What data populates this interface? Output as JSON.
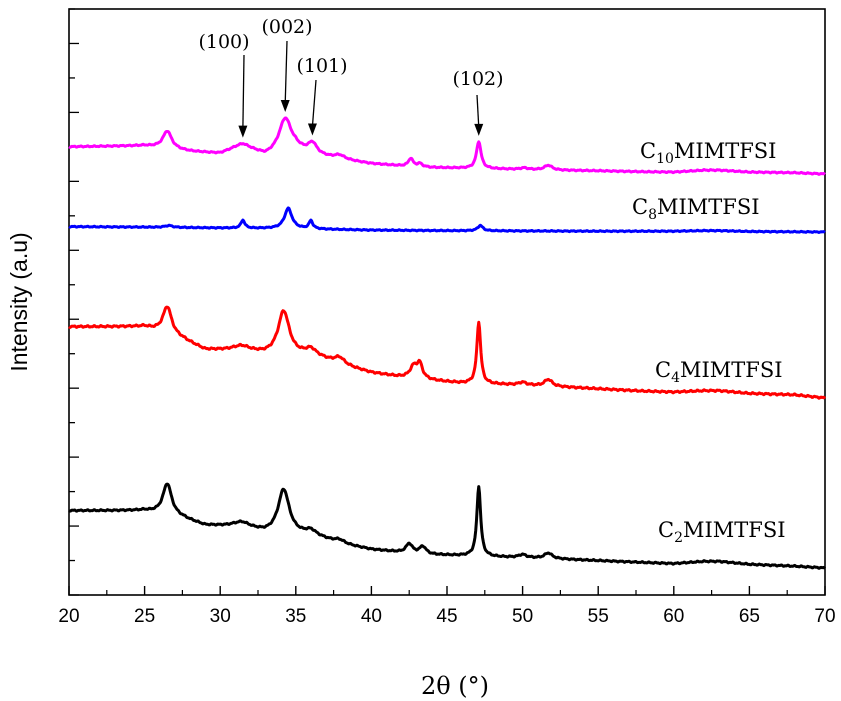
{
  "chart_data": {
    "type": "line",
    "title": "",
    "xlabel": "2θ (°)",
    "ylabel": "Intensity (a.u)",
    "xlim": [
      20,
      70
    ],
    "xticks": [
      "20",
      "25",
      "30",
      "35",
      "40",
      "45",
      "50",
      "55",
      "60",
      "65",
      "70"
    ],
    "y_tick_labels_shown": false,
    "grid": false,
    "legend": "none (series labelled inline)",
    "colors": {
      "C10": "#ff00ff",
      "C8": "#0000ff",
      "C4": "#ff0000",
      "C2": "#000000"
    },
    "series": [
      {
        "id": "C10",
        "label": {
          "pre": "C",
          "sub": "10",
          "post": "MIMTFSI"
        },
        "color": "#ff00ff",
        "baseline": [
          [
            20,
            0.85
          ],
          [
            25,
            0.88
          ],
          [
            28,
            0.7
          ],
          [
            30,
            0.62
          ],
          [
            31.5,
            0.8
          ],
          [
            33,
            0.55
          ],
          [
            35,
            0.75
          ],
          [
            36,
            0.6
          ],
          [
            38,
            0.45
          ],
          [
            40,
            0.32
          ],
          [
            42,
            0.25
          ],
          [
            44,
            0.2
          ],
          [
            46,
            0.18
          ],
          [
            48,
            0.16
          ],
          [
            50,
            0.14
          ],
          [
            52,
            0.12
          ],
          [
            55,
            0.1
          ],
          [
            58,
            0.07
          ],
          [
            60,
            0.06
          ],
          [
            62,
            0.12
          ],
          [
            63,
            0.12
          ],
          [
            65,
            0.06
          ],
          [
            68,
            0.04
          ],
          [
            70,
            0
          ]
        ],
        "peaks": [
          [
            26.5,
            0.55,
            0.35
          ],
          [
            31.4,
            0.12,
            0.9
          ],
          [
            34.3,
            1.05,
            0.5
          ],
          [
            36.1,
            0.35,
            0.35
          ],
          [
            37.9,
            0.12,
            0.4
          ],
          [
            42.6,
            0.25,
            0.18
          ],
          [
            43.2,
            0.1,
            0.2
          ],
          [
            47.1,
            0.85,
            0.18
          ],
          [
            50.1,
            0.05,
            0.3
          ],
          [
            51.7,
            0.15,
            0.3
          ]
        ]
      },
      {
        "id": "C8",
        "label": {
          "pre": "C",
          "sub": "8",
          "post": "MIMTFSI"
        },
        "color": "#0000ff",
        "baseline": [
          [
            20,
            0.2
          ],
          [
            25,
            0.18
          ],
          [
            30,
            0.15
          ],
          [
            35,
            0.12
          ],
          [
            40,
            0.07
          ],
          [
            45,
            0.05
          ],
          [
            50,
            0.04
          ],
          [
            55,
            0.03
          ],
          [
            60,
            0.03
          ],
          [
            62,
            0.05
          ],
          [
            63,
            0.05
          ],
          [
            65,
            0.02
          ],
          [
            70,
            0
          ]
        ],
        "peaks": [
          [
            26.6,
            0.07,
            0.3
          ],
          [
            31.5,
            0.3,
            0.15
          ],
          [
            34.5,
            0.75,
            0.3
          ],
          [
            36.0,
            0.3,
            0.15
          ],
          [
            47.2,
            0.2,
            0.2
          ]
        ]
      },
      {
        "id": "C4",
        "label": {
          "pre": "C",
          "sub": "4",
          "post": "MIMTFSI"
        },
        "color": "#ff0000",
        "baseline": [
          [
            20,
            1.55
          ],
          [
            25,
            1.55
          ],
          [
            27.5,
            1.28
          ],
          [
            29,
            1.05
          ],
          [
            31.5,
            1.02
          ],
          [
            33,
            0.95
          ],
          [
            35,
            0.93
          ],
          [
            36,
            0.95
          ],
          [
            38,
            0.72
          ],
          [
            40,
            0.55
          ],
          [
            42,
            0.45
          ],
          [
            44,
            0.38
          ],
          [
            46,
            0.32
          ],
          [
            48,
            0.3
          ],
          [
            50,
            0.28
          ],
          [
            52,
            0.25
          ],
          [
            55,
            0.2
          ],
          [
            58,
            0.15
          ],
          [
            60,
            0.13
          ],
          [
            62,
            0.16
          ],
          [
            63,
            0.16
          ],
          [
            65,
            0.1
          ],
          [
            68,
            0.07
          ],
          [
            70,
            0
          ]
        ],
        "peaks": [
          [
            26.5,
            0.6,
            0.35
          ],
          [
            31.4,
            0.1,
            0.7
          ],
          [
            34.2,
            0.95,
            0.45
          ],
          [
            36.0,
            0.1,
            0.4
          ],
          [
            37.9,
            0.15,
            0.4
          ],
          [
            42.8,
            0.25,
            0.3
          ],
          [
            43.2,
            0.3,
            0.22
          ],
          [
            47.1,
            1.35,
            0.15
          ],
          [
            50.0,
            0.06,
            0.3
          ],
          [
            51.7,
            0.15,
            0.3
          ]
        ]
      },
      {
        "id": "C2",
        "label": {
          "pre": "C",
          "sub": "2",
          "post": "MIMTFSI"
        },
        "color": "#000000",
        "baseline": [
          [
            20,
            1.55
          ],
          [
            25,
            1.55
          ],
          [
            27.5,
            1.35
          ],
          [
            29,
            1.15
          ],
          [
            31.5,
            1.1
          ],
          [
            33,
            0.95
          ],
          [
            35,
            0.9
          ],
          [
            36,
            0.9
          ],
          [
            38,
            0.65
          ],
          [
            40,
            0.5
          ],
          [
            42,
            0.42
          ],
          [
            44,
            0.36
          ],
          [
            46,
            0.33
          ],
          [
            48,
            0.3
          ],
          [
            50,
            0.28
          ],
          [
            52,
            0.25
          ],
          [
            55,
            0.2
          ],
          [
            58,
            0.15
          ],
          [
            60,
            0.12
          ],
          [
            62,
            0.18
          ],
          [
            63,
            0.18
          ],
          [
            65,
            0.1
          ],
          [
            68,
            0.05
          ],
          [
            70,
            0
          ]
        ],
        "peaks": [
          [
            26.5,
            0.85,
            0.35
          ],
          [
            31.4,
            0.12,
            0.7
          ],
          [
            34.2,
            1.2,
            0.45
          ],
          [
            36.0,
            0.1,
            0.4
          ],
          [
            37.9,
            0.1,
            0.4
          ],
          [
            42.5,
            0.25,
            0.25
          ],
          [
            43.4,
            0.2,
            0.25
          ],
          [
            47.1,
            1.9,
            0.15
          ],
          [
            50.0,
            0.08,
            0.3
          ],
          [
            51.7,
            0.15,
            0.3
          ]
        ]
      }
    ],
    "annotations": [
      {
        "id": "a100",
        "text": "(100)",
        "x": 31.5,
        "series": "C10"
      },
      {
        "id": "a002",
        "text": "(002)",
        "x": 34.3,
        "series": "C10"
      },
      {
        "id": "a101",
        "text": "(101)",
        "x": 36.1,
        "series": "C10"
      },
      {
        "id": "a102",
        "text": "(102)",
        "x": 47.1,
        "series": "C10"
      }
    ]
  }
}
